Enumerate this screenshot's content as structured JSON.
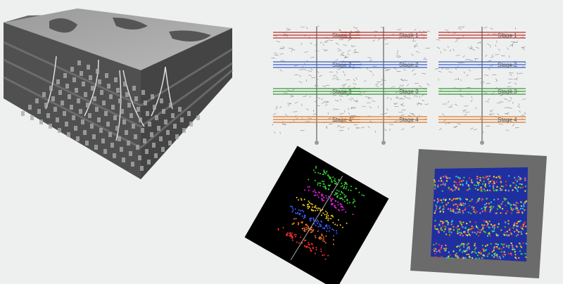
{
  "panels": [
    {
      "stages": [
        "Stage 1",
        "Stage 2",
        "Stage 3",
        "Stage 4"
      ]
    },
    {
      "stages": [
        "Stage 1",
        "Stage 2",
        "Stage 3",
        "Stage 4"
      ]
    },
    {
      "stages": [
        "Stage 1",
        "Stage 2",
        "Stage 3",
        "Stage 4"
      ]
    }
  ]
}
